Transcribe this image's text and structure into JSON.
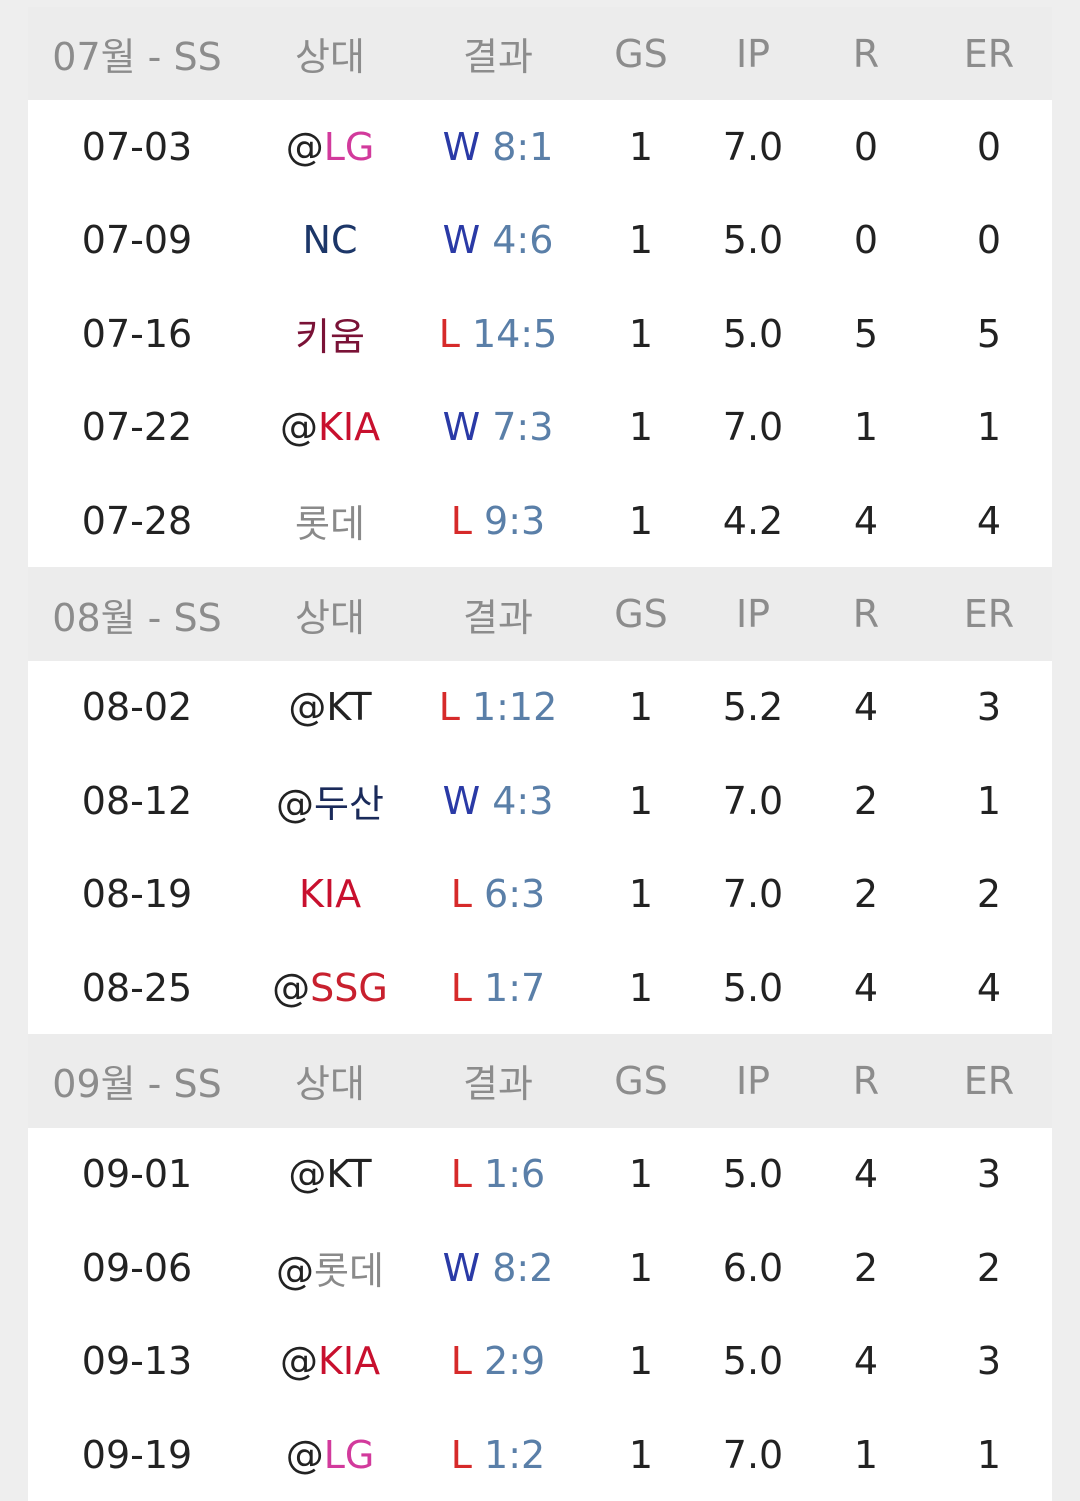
{
  "sections": [
    {
      "header": [
        "07월 - SS",
        "상대",
        "결과",
        "GS",
        "IP",
        "R",
        "ER"
      ],
      "rows": [
        {
          "date": "07-03",
          "opponent": {
            "prefix": "@",
            "team": "LG",
            "color": "#d23a9c"
          },
          "result": {
            "outcome": "W",
            "score": "8:1",
            "color": "#2a3aa6"
          },
          "gs": 1,
          "ip": "7.0",
          "r": 0,
          "er": 0
        },
        {
          "date": "07-09",
          "opponent": {
            "team": "NC",
            "color": "#1c3668"
          },
          "result": {
            "outcome": "W",
            "score": "4:6",
            "color": "#2a3aa6"
          },
          "gs": 1,
          "ip": "5.0",
          "r": 0,
          "er": 0
        },
        {
          "date": "07-16",
          "opponent": {
            "team": "키움",
            "color": "#7a1236"
          },
          "result": {
            "outcome": "L",
            "score": "14:5",
            "color": "#d62a2a"
          },
          "gs": 1,
          "ip": "5.0",
          "r": 5,
          "er": 5
        },
        {
          "date": "07-22",
          "opponent": {
            "prefix": "@",
            "team": "KIA",
            "color": "#c8102e"
          },
          "result": {
            "outcome": "W",
            "score": "7:3",
            "color": "#2a3aa6"
          },
          "gs": 1,
          "ip": "7.0",
          "r": 1,
          "er": 1
        },
        {
          "date": "07-28",
          "opponent": {
            "team": "롯데",
            "color": "#8a8a8a"
          },
          "result": {
            "outcome": "L",
            "score": "9:3",
            "color": "#d62a2a"
          },
          "gs": 1,
          "ip": "4.2",
          "r": 4,
          "er": 4
        }
      ]
    },
    {
      "header": [
        "08월 - SS",
        "상대",
        "결과",
        "GS",
        "IP",
        "R",
        "ER"
      ],
      "rows": [
        {
          "date": "08-02",
          "opponent": {
            "prefix": "@",
            "team": "KT",
            "color": "#222222"
          },
          "result": {
            "outcome": "L",
            "score": "1:12",
            "color": "#d62a2a"
          },
          "gs": 1,
          "ip": "5.2",
          "r": 4,
          "er": 3
        },
        {
          "date": "08-12",
          "opponent": {
            "prefix": "@",
            "team": "두산",
            "color": "#1a2a5a"
          },
          "result": {
            "outcome": "W",
            "score": "4:3",
            "color": "#2a3aa6"
          },
          "gs": 1,
          "ip": "7.0",
          "r": 2,
          "er": 1
        },
        {
          "date": "08-19",
          "opponent": {
            "team": "KIA",
            "color": "#c8102e"
          },
          "result": {
            "outcome": "L",
            "score": "6:3",
            "color": "#d62a2a"
          },
          "gs": 1,
          "ip": "7.0",
          "r": 2,
          "er": 2
        },
        {
          "date": "08-25",
          "opponent": {
            "prefix": "@",
            "team": "SSG",
            "color": "#c8202e"
          },
          "result": {
            "outcome": "L",
            "score": "1:7",
            "color": "#d62a2a"
          },
          "gs": 1,
          "ip": "5.0",
          "r": 4,
          "er": 4
        }
      ]
    },
    {
      "header": [
        "09월 - SS",
        "상대",
        "결과",
        "GS",
        "IP",
        "R",
        "ER"
      ],
      "rows": [
        {
          "date": "09-01",
          "opponent": {
            "prefix": "@",
            "team": "KT",
            "color": "#222222"
          },
          "result": {
            "outcome": "L",
            "score": "1:6",
            "color": "#d62a2a"
          },
          "gs": 1,
          "ip": "5.0",
          "r": 4,
          "er": 3
        },
        {
          "date": "09-06",
          "opponent": {
            "prefix": "@",
            "team": "롯데",
            "color": "#8a8a8a"
          },
          "result": {
            "outcome": "W",
            "score": "8:2",
            "color": "#2a3aa6"
          },
          "gs": 1,
          "ip": "6.0",
          "r": 2,
          "er": 2
        },
        {
          "date": "09-13",
          "opponent": {
            "prefix": "@",
            "team": "KIA",
            "color": "#c8102e"
          },
          "result": {
            "outcome": "L",
            "score": "2:9",
            "color": "#d62a2a"
          },
          "gs": 1,
          "ip": "5.0",
          "r": 4,
          "er": 3
        },
        {
          "date": "09-19",
          "opponent": {
            "prefix": "@",
            "team": "LG",
            "color": "#d23a9c"
          },
          "result": {
            "outcome": "L",
            "score": "1:2",
            "color": "#d62a2a"
          },
          "gs": 1,
          "ip": "7.0",
          "r": 1,
          "er": 1
        }
      ]
    }
  ]
}
